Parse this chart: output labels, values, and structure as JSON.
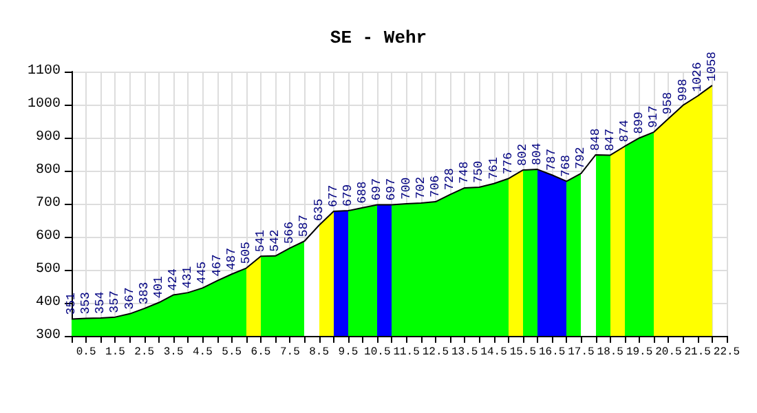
{
  "chart_data": {
    "type": "area",
    "title": "SE - Wehr",
    "x": [
      0,
      0.5,
      1,
      1.5,
      2,
      2.5,
      3,
      3.5,
      4,
      4.5,
      5,
      5.5,
      6,
      6.5,
      7,
      7.5,
      8,
      8.5,
      9,
      9.5,
      10,
      10.5,
      11,
      11.5,
      12,
      12.5,
      13,
      13.5,
      14,
      14.5,
      15,
      15.5,
      16,
      16.5,
      17,
      17.5,
      18,
      18.5,
      19,
      19.5,
      20,
      20.5,
      21,
      21.5,
      22
    ],
    "series": [
      {
        "color": "#000000",
        "values": [
          351,
          353,
          354,
          357,
          367,
          383,
          401,
          424,
          431,
          445,
          467,
          487,
          505,
          541,
          542,
          566,
          587,
          635,
          677,
          679,
          688,
          697,
          697,
          700,
          702,
          706,
          728,
          748,
          750,
          761,
          776,
          802,
          804,
          787,
          768,
          792,
          848,
          847,
          874,
          899,
          917,
          958,
          998,
          1026,
          1058
        ],
        "colors": [
          "#00ff00",
          "#00ff00",
          "#00ff00",
          "#00ff00",
          "#00ff00",
          "#00ff00",
          "#00ff00",
          "#00ff00",
          "#00ff00",
          "#00ff00",
          "#00ff00",
          "#00ff00",
          "#ffff00",
          "#00ff00",
          "#00ff00",
          "#00ff00",
          "#ffffff",
          "#ffff00",
          "#0000ff",
          "#00ff00",
          "#00ff00",
          "#0000ff",
          "#00ff00",
          "#00ff00",
          "#00ff00",
          "#00ff00",
          "#00ff00",
          "#00ff00",
          "#00ff00",
          "#00ff00",
          "#ffff00",
          "#00ff00",
          "#0000ff",
          "#0000ff",
          "#00ff00",
          "#ffffff",
          "#00ff00",
          "#ffff00",
          "#00ff00",
          "#00ff00",
          "#ffff00",
          "#ffff00",
          "#ffff00",
          "#ffff00",
          "#ffff00"
        ]
      }
    ],
    "data_labels": true,
    "xlim": [
      0,
      22.5
    ],
    "xticks": [
      {
        "value": 0.5,
        "label": "0.5"
      },
      {
        "value": 1,
        "label": null
      },
      {
        "value": 1.5,
        "label": "1.5"
      },
      {
        "value": 2,
        "label": null
      },
      {
        "value": 2.5,
        "label": "2.5"
      },
      {
        "value": 3,
        "label": null
      },
      {
        "value": 3.5,
        "label": "3.5"
      },
      {
        "value": 4,
        "label": null
      },
      {
        "value": 4.5,
        "label": "4.5"
      },
      {
        "value": 5,
        "label": null
      },
      {
        "value": 5.5,
        "label": "5.5"
      },
      {
        "value": 6,
        "label": null
      },
      {
        "value": 6.5,
        "label": "6.5"
      },
      {
        "value": 7,
        "label": null
      },
      {
        "value": 7.5,
        "label": "7.5"
      },
      {
        "value": 8,
        "label": null
      },
      {
        "value": 8.5,
        "label": "8.5"
      },
      {
        "value": 9,
        "label": null
      },
      {
        "value": 9.5,
        "label": "9.5"
      },
      {
        "value": 10,
        "label": null
      },
      {
        "value": 10.5,
        "label": "10.5"
      },
      {
        "value": 11,
        "label": null
      },
      {
        "value": 11.5,
        "label": "11.5"
      },
      {
        "value": 12,
        "label": null
      },
      {
        "value": 12.5,
        "label": "12.5"
      },
      {
        "value": 13,
        "label": null
      },
      {
        "value": 13.5,
        "label": "13.5"
      },
      {
        "value": 14,
        "label": null
      },
      {
        "value": 14.5,
        "label": "14.5"
      },
      {
        "value": 15,
        "label": null
      },
      {
        "value": 15.5,
        "label": "15.5"
      },
      {
        "value": 16,
        "label": null
      },
      {
        "value": 16.5,
        "label": "16.5"
      },
      {
        "value": 17,
        "label": null
      },
      {
        "value": 17.5,
        "label": "17.5"
      },
      {
        "value": 18,
        "label": null
      },
      {
        "value": 18.5,
        "label": "18.5"
      },
      {
        "value": 19,
        "label": null
      },
      {
        "value": 19.5,
        "label": "19.5"
      },
      {
        "value": 20,
        "label": null
      },
      {
        "value": 20.5,
        "label": "20.5"
      },
      {
        "value": 21,
        "label": null
      },
      {
        "value": 21.5,
        "label": "21.5"
      },
      {
        "value": 22,
        "label": null
      },
      {
        "value": 22.5,
        "label": "22.5"
      }
    ],
    "ylim": [
      300,
      1100
    ],
    "yticks": [
      300,
      400,
      500,
      600,
      700,
      800,
      900,
      1000,
      1100
    ],
    "grid": true
  }
}
